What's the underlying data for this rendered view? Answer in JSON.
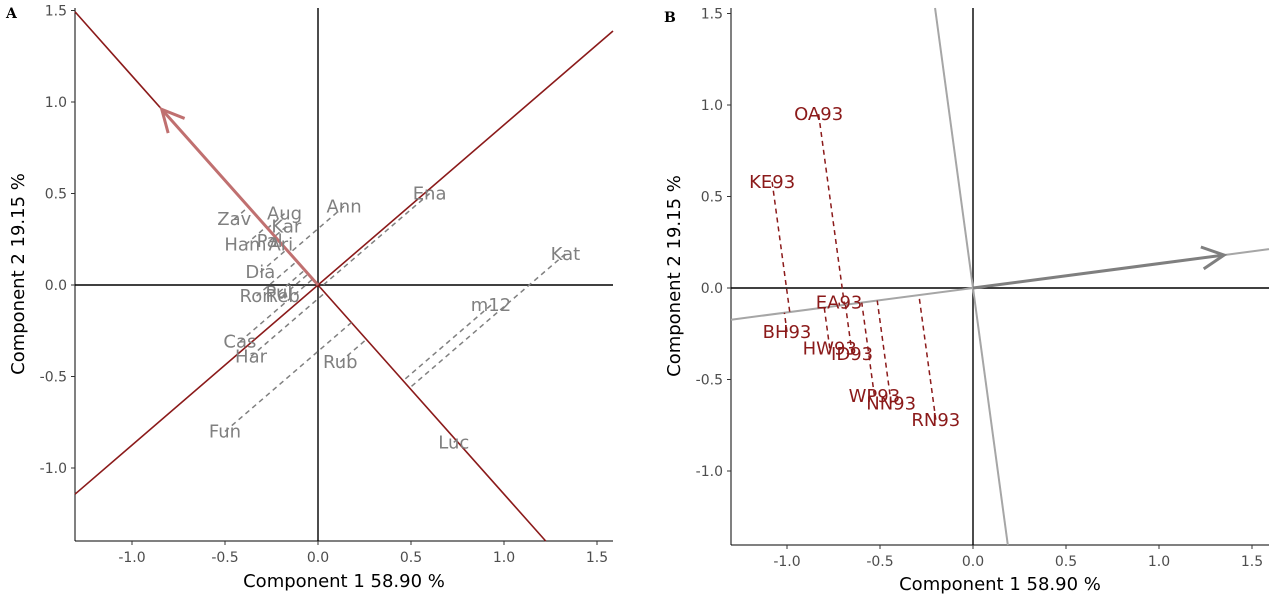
{
  "chart_data": [
    {
      "type": "scatter",
      "panel": "A",
      "xlabel": "Component 1 58.90 %",
      "ylabel": "Component 2 19.15 %",
      "xlim": [
        -1.3,
        1.6
      ],
      "ylim": [
        -1.4,
        1.5
      ],
      "xticks": [
        -1.0,
        -0.5,
        0.0,
        0.5,
        1.0,
        1.5
      ],
      "xtick_labels": [
        "-1.0",
        "-0.5",
        "0.0",
        "0.5",
        "1.0",
        "1.5"
      ],
      "yticks": [
        -1.0,
        -0.5,
        0.0,
        0.5,
        1.0,
        1.5
      ],
      "ytick_labels": [
        "-1.0",
        "-0.5",
        "0.0",
        "0.5",
        "1.0",
        "1.5"
      ],
      "grid": false,
      "line_colors": {
        "axis_lines": "#8b1a1a",
        "arrow": "#c07070",
        "labels": "#808080",
        "projections": "#808080"
      },
      "arrow": {
        "x": -0.84,
        "y": 0.96
      },
      "points": [
        {
          "label": "Zav",
          "x": -0.45,
          "y": 0.36
        },
        {
          "label": "Aug",
          "x": -0.18,
          "y": 0.39
        },
        {
          "label": "Kar",
          "x": -0.17,
          "y": 0.32
        },
        {
          "label": "Ann",
          "x": 0.14,
          "y": 0.43
        },
        {
          "label": "Ena",
          "x": 0.6,
          "y": 0.5
        },
        {
          "label": "Ham",
          "x": -0.39,
          "y": 0.22
        },
        {
          "label": "Pal",
          "x": -0.26,
          "y": 0.24
        },
        {
          "label": "Ari",
          "x": -0.2,
          "y": 0.22
        },
        {
          "label": "Dia",
          "x": -0.31,
          "y": 0.07
        },
        {
          "label": "Kat",
          "x": 1.33,
          "y": 0.17
        },
        {
          "label": "Pul",
          "x": -0.21,
          "y": -0.04
        },
        {
          "label": "Ron",
          "x": -0.33,
          "y": -0.06
        },
        {
          "label": "Reb",
          "x": -0.19,
          "y": -0.06
        },
        {
          "label": "m12",
          "x": 0.93,
          "y": -0.11
        },
        {
          "label": "Cas",
          "x": -0.42,
          "y": -0.31
        },
        {
          "label": "Har",
          "x": -0.36,
          "y": -0.39
        },
        {
          "label": "Rub",
          "x": 0.12,
          "y": -0.42
        },
        {
          "label": "Fun",
          "x": -0.5,
          "y": -0.8
        },
        {
          "label": "Luc",
          "x": 0.73,
          "y": -0.86
        }
      ]
    },
    {
      "type": "scatter",
      "panel": "B",
      "xlabel": "Component 1 58.90 %",
      "ylabel": "Component 2 19.15 %",
      "xlim": [
        -1.3,
        1.6
      ],
      "ylim": [
        -1.4,
        1.5
      ],
      "xticks": [
        -1.0,
        -0.5,
        0.0,
        0.5,
        1.0,
        1.5
      ],
      "xtick_labels": [
        "-1.0",
        "-0.5",
        "0.0",
        "0.5",
        "1.0",
        "1.5"
      ],
      "yticks": [
        -1.0,
        -0.5,
        0.0,
        0.5,
        1.0,
        1.5
      ],
      "ytick_labels": [
        "-1.0",
        "-0.5",
        "0.0",
        "0.5",
        "1.0",
        "1.5"
      ],
      "grid": false,
      "line_colors": {
        "axis_lines": "#a6a6a6",
        "arrow": "#7f7f7f",
        "labels": "#8b1a1a",
        "projections": "#8b1a1a"
      },
      "arrow": {
        "x": 1.35,
        "y": 0.18
      },
      "points": [
        {
          "label": "OA93",
          "x": -0.83,
          "y": 0.95
        },
        {
          "label": "KE93",
          "x": -1.08,
          "y": 0.58
        },
        {
          "label": "EA93",
          "x": -0.72,
          "y": -0.08
        },
        {
          "label": "BH93",
          "x": -1.0,
          "y": -0.24
        },
        {
          "label": "HW93",
          "x": -0.77,
          "y": -0.33
        },
        {
          "label": "ID93",
          "x": -0.65,
          "y": -0.36
        },
        {
          "label": "WP93",
          "x": -0.53,
          "y": -0.59
        },
        {
          "label": "NN93",
          "x": -0.44,
          "y": -0.63
        },
        {
          "label": "RN93",
          "x": -0.2,
          "y": -0.72
        }
      ]
    }
  ]
}
